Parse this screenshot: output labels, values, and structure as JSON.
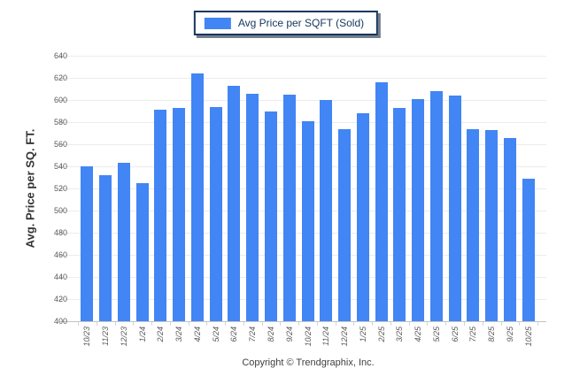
{
  "legend": {
    "label": "Avg Price per SQFT (Sold)"
  },
  "footer": {
    "copyright": "Copyright © Trendgraphix, Inc."
  },
  "colors": {
    "bar": "#4285F4",
    "legend_border": "#17375E",
    "legend_text": "#16365C",
    "grid": "#ECECEC",
    "axis_line": "#C4C4C4",
    "y_tick": "#AECBF0",
    "x_tick": "#C9D6E8",
    "tick_label": "#595959",
    "y_title": "#333333",
    "footer_text": "#3F3F3F",
    "background": "#FFFFFF"
  },
  "chart_data": {
    "type": "bar",
    "title": "",
    "series_name": "Avg Price per SQFT (Sold)",
    "categories": [
      "10/23",
      "11/23",
      "12/23",
      "1/24",
      "2/24",
      "3/24",
      "4/24",
      "5/24",
      "6/24",
      "7/24",
      "8/24",
      "9/24",
      "10/24",
      "11/24",
      "12/24",
      "1/25",
      "2/25",
      "3/25",
      "4/25",
      "5/25",
      "6/25",
      "7/25",
      "8/25",
      "9/25",
      "10/25"
    ],
    "values": [
      540,
      532,
      543,
      525,
      591,
      593,
      624,
      594,
      613,
      606,
      590,
      605,
      581,
      600,
      574,
      588,
      616,
      593,
      601,
      608,
      604,
      574,
      573,
      566,
      529
    ],
    "xlabel": "",
    "ylabel": "Avg. Price per SQ. FT.",
    "ylim": [
      400,
      640
    ],
    "ytick_step": 20,
    "grid": true,
    "legend_position": "top-center"
  }
}
